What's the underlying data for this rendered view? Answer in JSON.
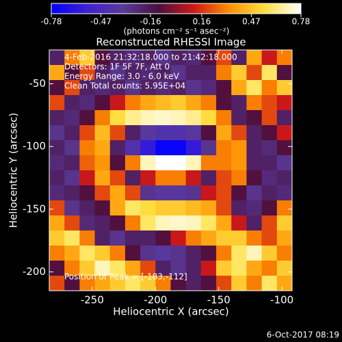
{
  "chart_data": {
    "type": "heatmap",
    "title": "Reconstructed RHESSI Image",
    "colorbar_label": "(photons cm⁻² s⁻¹ asec⁻²)",
    "xlabel": "Heliocentric X (arcsec)",
    "ylabel": "Heliocentric Y (arcsec)",
    "annotations": [
      "4-Feb-2016 21:32:18.000 to 21:42:18.000",
      "Detectors: 1F 5F 7F, Att 0",
      "Energy Range: 3.0 - 6.0 keV",
      "Clean     Total counts: 5.95E+04"
    ],
    "peak_label": "Position of Peak = [-183,-112]",
    "footer": "6-Oct-2017 08:19",
    "xlim": [
      -284,
      -92
    ],
    "ylim": [
      -215,
      -23
    ],
    "xticks": [
      -250,
      -200,
      -150,
      -100
    ],
    "yticks": [
      -50,
      -100,
      -150,
      -200
    ],
    "clim": [
      -0.78,
      0.78
    ],
    "cticks": [
      -0.78,
      -0.47,
      -0.16,
      0.16,
      0.47,
      0.78
    ],
    "colormap": [
      "#0000ff",
      "#4020d0",
      "#5a3a9a",
      "#4a1040",
      "#d01818",
      "#ff9000",
      "#ffe040",
      "#ffffff"
    ],
    "z": [
      [
        -0.2,
        0.3,
        0.5,
        -0.1,
        -0.2,
        -0.25,
        -0.2,
        -0.3,
        -0.2,
        -0.25,
        -0.1,
        0.2,
        -0.2,
        0.4,
        0.1,
        0.3
      ],
      [
        0.4,
        -0.1,
        0.2,
        -0.2,
        -0.3,
        -0.2,
        -0.25,
        -0.2,
        -0.3,
        -0.2,
        -0.2,
        0.3,
        0.5,
        0.2,
        0.6,
        -0.1
      ],
      [
        -0.1,
        0.2,
        -0.2,
        -0.25,
        -0.2,
        -0.3,
        -0.2,
        -0.25,
        -0.2,
        -0.3,
        -0.25,
        -0.1,
        0.4,
        0.6,
        0.3,
        0.5
      ],
      [
        0.2,
        -0.2,
        -0.25,
        -0.1,
        0.1,
        0.3,
        0.4,
        0.45,
        0.5,
        0.4,
        0.3,
        -0.1,
        -0.2,
        0.3,
        0.2,
        0.1
      ],
      [
        -0.2,
        -0.25,
        -0.1,
        0.3,
        0.55,
        0.65,
        0.7,
        0.72,
        0.7,
        0.65,
        0.55,
        0.3,
        -0.2,
        -0.1,
        0.2,
        -0.2
      ],
      [
        -0.3,
        -0.2,
        0.2,
        0.45,
        0.2,
        -0.2,
        -0.35,
        -0.4,
        -0.4,
        -0.35,
        -0.1,
        0.4,
        0.2,
        -0.2,
        -0.1,
        0.1
      ],
      [
        -0.2,
        -0.3,
        0.3,
        0.4,
        -0.2,
        -0.4,
        -0.6,
        -0.75,
        -0.75,
        -0.6,
        -0.3,
        0.3,
        0.35,
        -0.2,
        -0.25,
        -0.1
      ],
      [
        -0.25,
        -0.2,
        0.25,
        0.35,
        -0.1,
        0.3,
        0.7,
        0.78,
        0.78,
        0.7,
        0.3,
        0.3,
        0.35,
        -0.2,
        -0.2,
        -0.3
      ],
      [
        -0.2,
        -0.3,
        0.1,
        0.4,
        0.2,
        -0.2,
        0.1,
        0.3,
        0.3,
        0.1,
        -0.2,
        0.2,
        0.3,
        -0.1,
        -0.25,
        -0.2
      ],
      [
        -0.25,
        -0.2,
        -0.1,
        0.2,
        0.4,
        0.2,
        -0.3,
        -0.35,
        -0.35,
        -0.3,
        0.1,
        0.2,
        -0.1,
        -0.3,
        -0.2,
        -0.25
      ],
      [
        0.2,
        -0.3,
        -0.2,
        -0.1,
        0.4,
        0.6,
        0.55,
        0.5,
        0.5,
        0.45,
        0.4,
        0.2,
        -0.2,
        -0.25,
        -0.1,
        0.3
      ],
      [
        0.4,
        0.2,
        -0.25,
        -0.2,
        -0.1,
        0.3,
        0.6,
        0.7,
        0.72,
        0.7,
        0.6,
        0.4,
        0.1,
        -0.2,
        0.2,
        0.5
      ],
      [
        0.5,
        0.6,
        0.3,
        -0.2,
        -0.3,
        -0.2,
        -0.2,
        -0.1,
        0.1,
        0.3,
        0.4,
        0.5,
        0.5,
        0.3,
        0.2,
        0.4
      ],
      [
        0.3,
        0.4,
        0.6,
        0.5,
        0.3,
        -0.1,
        -0.3,
        -0.35,
        -0.3,
        -0.2,
        -0.1,
        0.3,
        0.6,
        0.7,
        0.5,
        0.3
      ],
      [
        -0.1,
        0.3,
        0.5,
        0.7,
        0.6,
        0.4,
        0.2,
        -0.2,
        -0.3,
        -0.2,
        0.1,
        0.5,
        0.6,
        0.4,
        0.3,
        0.5
      ],
      [
        0.2,
        -0.1,
        0.3,
        0.4,
        0.5,
        0.6,
        0.5,
        0.3,
        -0.1,
        -0.2,
        -0.1,
        0.2,
        0.5,
        0.3,
        0.6,
        0.4
      ]
    ]
  }
}
